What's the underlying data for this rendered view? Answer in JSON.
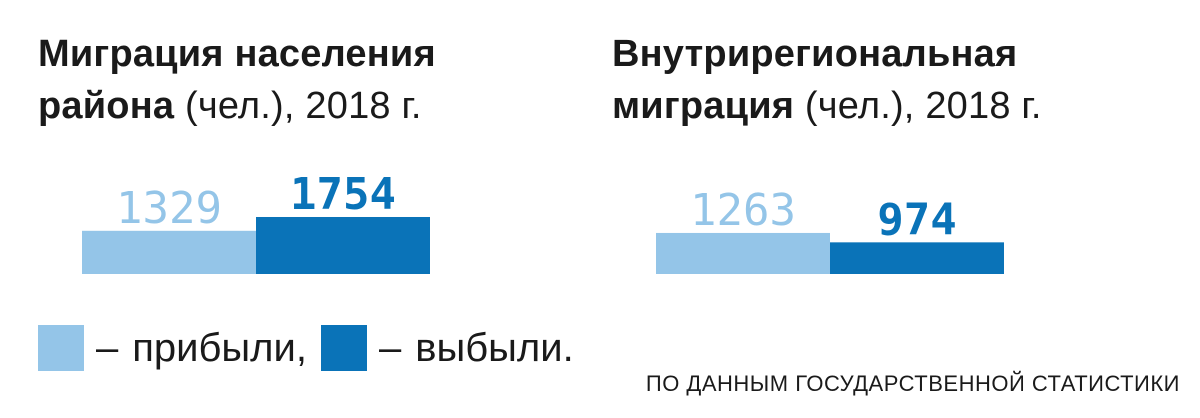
{
  "colors": {
    "arrived": "#94c5e8",
    "departed": "#0a73b8"
  },
  "chart_data": [
    {
      "type": "bar",
      "title_bold": "Миграция населения",
      "title_bold_2": "района",
      "title_rest": " (чел.), 2018 г.",
      "categories": [
        "прибыли",
        "выбыли"
      ],
      "values": [
        1329,
        1754
      ]
    },
    {
      "type": "bar",
      "title_bold": "Внутрирегиональная",
      "title_bold_2": "миграция",
      "title_rest": " (чел.), 2018 г.",
      "categories": [
        "прибыли",
        "выбыли"
      ],
      "values": [
        1263,
        974
      ]
    }
  ],
  "legend": {
    "dash": "–",
    "arrived_label": "прибыли,",
    "departed_label": "выбыли."
  },
  "source": "ПО ДАННЫМ ГОСУДАРСТВЕННОЙ СТАТИСТИКИ"
}
